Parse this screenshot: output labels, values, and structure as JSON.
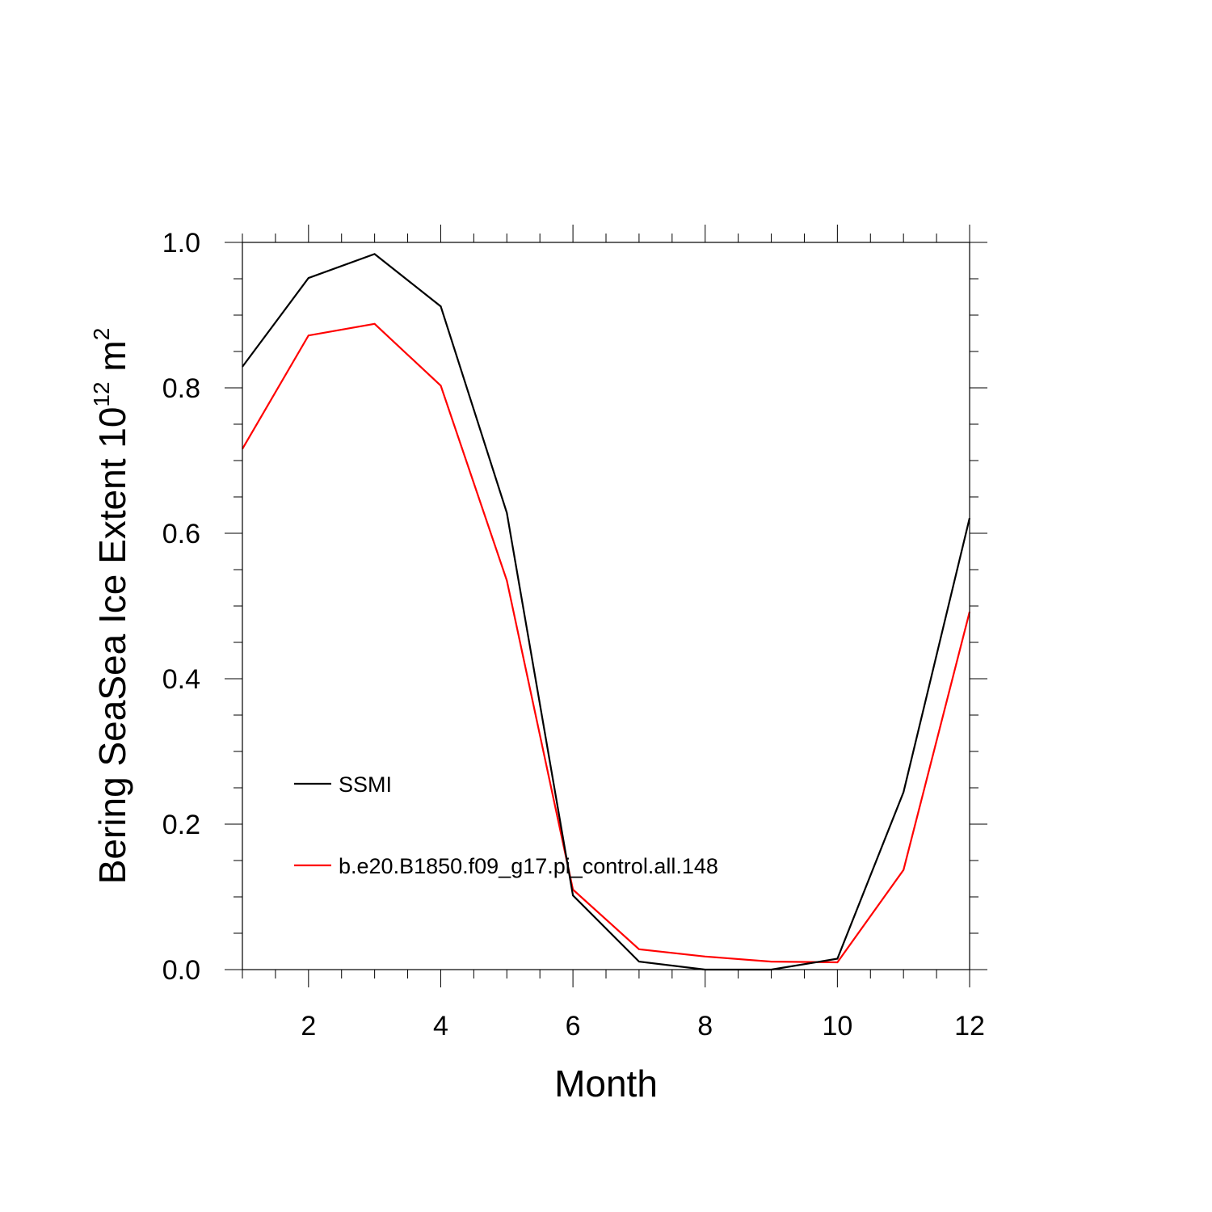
{
  "chart_data": {
    "type": "line",
    "title": "",
    "xlabel": "Month",
    "ylabel_parts": [
      "Bering SeaSea Ice Extent 10",
      "12",
      " m",
      "2"
    ],
    "xlim": [
      1,
      12
    ],
    "ylim": [
      0,
      1.0
    ],
    "x_ticks": [
      2,
      4,
      6,
      8,
      10,
      12
    ],
    "x_tick_labels": [
      "2",
      "4",
      "6",
      "8",
      "10",
      "12"
    ],
    "y_ticks": [
      0,
      0.2,
      0.4,
      0.6,
      0.8,
      1.0
    ],
    "y_tick_labels": [
      "0.0",
      "0.2",
      "0.4",
      "0.6",
      "0.8",
      "1.0"
    ],
    "grid": false,
    "legend_position": "lower-left",
    "x": [
      1,
      2,
      3,
      4,
      5,
      6,
      7,
      8,
      9,
      10,
      11,
      12
    ],
    "series": [
      {
        "name": "SSMI",
        "color": "#000000",
        "values": [
          0.829,
          0.951,
          0.984,
          0.912,
          0.628,
          0.102,
          0.011,
          0.0,
          0.0,
          0.015,
          0.244,
          0.621
        ]
      },
      {
        "name": "b.e20.B1850.f09_g17.pi_control.all.148",
        "color": "#ff0000",
        "values": [
          0.716,
          0.872,
          0.888,
          0.803,
          0.535,
          0.11,
          0.028,
          0.018,
          0.011,
          0.01,
          0.137,
          0.492
        ]
      }
    ]
  }
}
